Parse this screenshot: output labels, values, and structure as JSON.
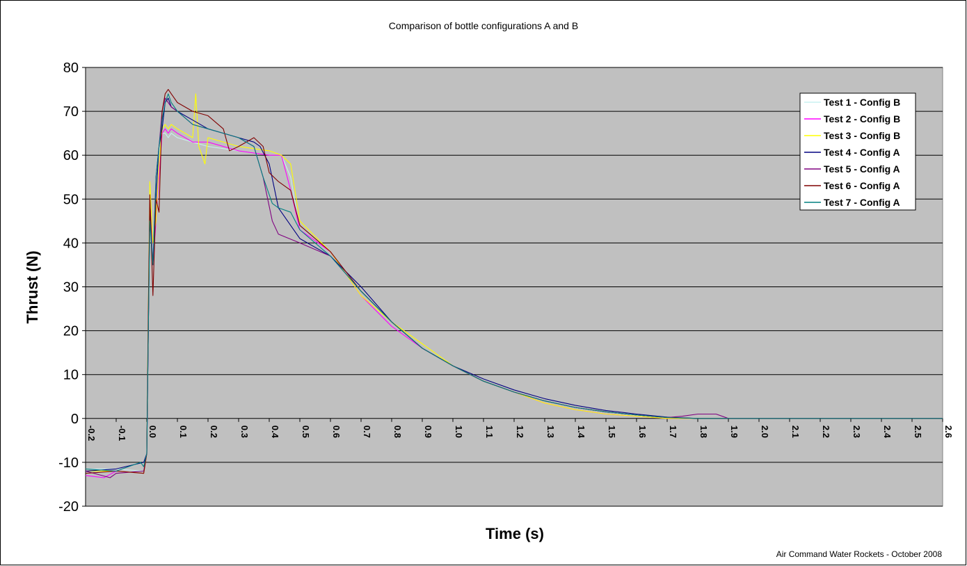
{
  "credit": "Air Command Water Rockets - October 2008",
  "chart_data": {
    "type": "line",
    "title": "Comparison of bottle configurations A and B",
    "xlabel": "Time (s)",
    "ylabel": "Thrust (N)",
    "xlim": [
      -0.2,
      2.6
    ],
    "ylim": [
      -20,
      80
    ],
    "x_ticks": [
      "-0.2",
      "-0.1",
      "0.0",
      "0.1",
      "0.2",
      "0.3",
      "0.4",
      "0.5",
      "0.6",
      "0.7",
      "0.8",
      "0.9",
      "1.0",
      "1.1",
      "1.2",
      "1.3",
      "1.4",
      "1.5",
      "1.6",
      "1.7",
      "1.8",
      "1.9",
      "2.0",
      "2.1",
      "2.2",
      "2.3",
      "2.4",
      "2.5",
      "2.6"
    ],
    "y_ticks": [
      "-20",
      "-10",
      "0",
      "10",
      "20",
      "30",
      "40",
      "50",
      "60",
      "70",
      "80"
    ],
    "grid": "horizontal",
    "plot_background": "#c0c0c0",
    "legend_position": "top-right",
    "series": [
      {
        "name": "Test 1 - Config B",
        "color": "#c8f0f0",
        "x": [
          -0.2,
          -0.1,
          -0.01,
          0.0,
          0.005,
          0.01,
          0.02,
          0.03,
          0.04,
          0.05,
          0.06,
          0.07,
          0.08,
          0.1,
          0.15,
          0.2,
          0.3,
          0.4,
          0.44,
          0.47,
          0.5,
          0.6,
          0.7,
          0.8,
          0.9,
          1.0,
          1.1,
          1.2,
          1.3,
          1.4,
          1.5,
          1.6,
          1.7,
          1.8,
          1.9,
          2.0,
          2.6
        ],
        "y": [
          -11.5,
          -11.5,
          -12,
          -8,
          20,
          45,
          38,
          50,
          60,
          65,
          65,
          64,
          65,
          64,
          63,
          62,
          61,
          60,
          60,
          55,
          43,
          38,
          29,
          22,
          16,
          12,
          8.5,
          6,
          4,
          2.5,
          1.5,
          0.7,
          0.2,
          0,
          0,
          0,
          0
        ]
      },
      {
        "name": "Test 2 - Config B",
        "color": "#ff00ff",
        "x": [
          -0.2,
          -0.14,
          -0.1,
          -0.01,
          0.0,
          0.005,
          0.01,
          0.02,
          0.03,
          0.04,
          0.05,
          0.06,
          0.07,
          0.08,
          0.1,
          0.15,
          0.2,
          0.3,
          0.4,
          0.44,
          0.47,
          0.5,
          0.6,
          0.7,
          0.8,
          0.9,
          1.0,
          1.1,
          1.2,
          1.3,
          1.4,
          1.5,
          1.6,
          1.7,
          1.8,
          1.9,
          2.0,
          2.6
        ],
        "y": [
          -13,
          -13.5,
          -12,
          -12.5,
          -8,
          20,
          48,
          35,
          45,
          55,
          65,
          66,
          65,
          66,
          65,
          63,
          63,
          61,
          60,
          60,
          52,
          43,
          38,
          28,
          21,
          16,
          12,
          8.5,
          6,
          3.5,
          2,
          1,
          0.5,
          0,
          0,
          0,
          0,
          0
        ]
      },
      {
        "name": "Test 3 - Config B",
        "color": "#ffff00",
        "x": [
          -0.2,
          -0.1,
          -0.01,
          0.0,
          0.005,
          0.01,
          0.02,
          0.03,
          0.04,
          0.05,
          0.06,
          0.07,
          0.08,
          0.1,
          0.15,
          0.16,
          0.17,
          0.19,
          0.2,
          0.3,
          0.4,
          0.44,
          0.47,
          0.5,
          0.6,
          0.7,
          0.8,
          0.9,
          1.0,
          1.1,
          1.2,
          1.3,
          1.4,
          1.5,
          1.6,
          1.7,
          1.8,
          1.9,
          2.0,
          2.6
        ],
        "y": [
          -12,
          -12,
          -12.5,
          -8,
          25,
          54,
          40,
          45,
          58,
          66,
          67,
          66,
          67,
          66,
          64,
          74,
          62,
          58,
          64,
          62,
          61,
          60,
          58,
          45,
          38,
          28,
          22,
          17,
          12,
          8.5,
          6,
          3.5,
          2,
          1,
          0.5,
          0,
          0,
          0,
          0,
          0
        ]
      },
      {
        "name": "Test 4 - Config A",
        "color": "#000080",
        "x": [
          -0.2,
          -0.1,
          -0.01,
          0.0,
          0.005,
          0.01,
          0.02,
          0.03,
          0.04,
          0.05,
          0.06,
          0.07,
          0.08,
          0.1,
          0.15,
          0.2,
          0.25,
          0.3,
          0.35,
          0.37,
          0.4,
          0.43,
          0.47,
          0.5,
          0.6,
          0.7,
          0.8,
          0.9,
          1.0,
          1.1,
          1.2,
          1.3,
          1.4,
          1.5,
          1.6,
          1.7,
          1.8,
          1.9,
          2.0,
          2.2,
          2.6
        ],
        "y": [
          -12,
          -11.5,
          -10,
          -8,
          20,
          48,
          35,
          50,
          62,
          66,
          72,
          73,
          71,
          70,
          68,
          66,
          65,
          64,
          63,
          62,
          58,
          48,
          44,
          41,
          37,
          30,
          22,
          16,
          12,
          9,
          6.5,
          4.5,
          3,
          1.8,
          1,
          0.3,
          0,
          0,
          0,
          0,
          0
        ]
      },
      {
        "name": "Test 5 - Config A",
        "color": "#800080",
        "x": [
          -0.2,
          -0.12,
          -0.1,
          -0.01,
          0.0,
          0.005,
          0.01,
          0.02,
          0.03,
          0.04,
          0.05,
          0.06,
          0.07,
          0.08,
          0.1,
          0.15,
          0.2,
          0.25,
          0.3,
          0.35,
          0.38,
          0.41,
          0.43,
          0.5,
          0.6,
          0.7,
          0.8,
          0.9,
          1.0,
          1.1,
          1.2,
          1.3,
          1.4,
          1.5,
          1.6,
          1.7,
          1.75,
          1.8,
          1.86,
          1.9,
          2.0,
          2.6
        ],
        "y": [
          -12,
          -13.5,
          -12.5,
          -12,
          -8,
          20,
          50,
          35,
          55,
          62,
          70,
          73,
          72,
          71,
          70,
          67,
          66,
          65,
          64,
          62,
          55,
          45,
          42,
          40,
          37,
          29,
          22,
          16,
          12,
          8.5,
          6,
          4,
          2.5,
          1.5,
          0.8,
          0.2,
          0.5,
          1,
          1,
          0,
          0,
          0
        ]
      },
      {
        "name": "Test 6 - Config A",
        "color": "#800000",
        "x": [
          -0.2,
          -0.1,
          -0.01,
          0.0,
          0.005,
          0.01,
          0.02,
          0.03,
          0.04,
          0.05,
          0.06,
          0.07,
          0.08,
          0.1,
          0.15,
          0.2,
          0.25,
          0.27,
          0.3,
          0.35,
          0.38,
          0.4,
          0.43,
          0.47,
          0.5,
          0.6,
          0.7,
          0.8,
          0.9,
          1.0,
          1.1,
          1.2,
          1.3,
          1.4,
          1.5,
          1.6,
          1.7,
          1.8,
          1.9,
          2.0,
          2.6
        ],
        "y": [
          -12.5,
          -12,
          -12.5,
          -8,
          25,
          51,
          28,
          50,
          47,
          70,
          74,
          75,
          74,
          72,
          70,
          69,
          66,
          61,
          62,
          64,
          62,
          56,
          54,
          52,
          44,
          38,
          29,
          22,
          16,
          12,
          8.5,
          6,
          4,
          2.5,
          1.5,
          0.8,
          0.2,
          0,
          0,
          0,
          0
        ]
      },
      {
        "name": "Test 7 - Config A",
        "color": "#008080",
        "x": [
          -0.2,
          -0.1,
          -0.02,
          -0.01,
          0.0,
          0.005,
          0.01,
          0.02,
          0.03,
          0.04,
          0.05,
          0.06,
          0.07,
          0.08,
          0.1,
          0.15,
          0.2,
          0.25,
          0.3,
          0.35,
          0.38,
          0.41,
          0.43,
          0.47,
          0.5,
          0.6,
          0.7,
          0.8,
          0.9,
          1.0,
          1.1,
          1.2,
          1.3,
          1.4,
          1.5,
          1.6,
          1.7,
          1.8,
          1.9,
          2.0,
          2.6
        ],
        "y": [
          -11.5,
          -12,
          -10,
          -11,
          -8,
          20,
          45,
          35,
          55,
          62,
          68,
          72,
          74,
          72,
          70,
          67,
          66,
          65,
          64,
          62,
          55,
          49,
          48,
          47,
          43,
          37,
          29,
          22,
          16,
          12,
          8.5,
          6,
          4,
          2.5,
          1.5,
          0.8,
          0.2,
          0,
          0,
          0,
          0
        ]
      }
    ]
  }
}
